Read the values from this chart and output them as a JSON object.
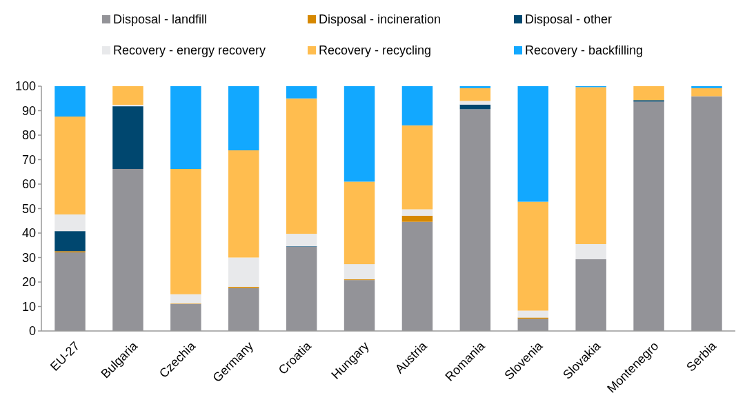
{
  "chart_data": {
    "type": "bar",
    "stacked": true,
    "legend": "top",
    "grid": false,
    "categories": [
      "EU-27",
      "Bulgaria",
      "Czechia",
      "Germany",
      "Croatia",
      "Hungary",
      "Austria",
      "Romania",
      "Slovenia",
      "Slovakia",
      "Montenegro",
      "Serbia"
    ],
    "ylim": [
      0,
      100
    ],
    "yticks": [
      0,
      10,
      20,
      30,
      40,
      50,
      60,
      70,
      80,
      90,
      100
    ],
    "series": [
      {
        "name": "Disposal - landfill",
        "color": "#939398",
        "values": [
          32.1,
          66.2,
          11,
          17.5,
          34.4,
          20.8,
          44.6,
          90.6,
          5,
          29.3,
          93.7,
          95.9
        ]
      },
      {
        "name": "Disposal - incineration",
        "color": "#d68800",
        "values": [
          0.5,
          0,
          0.2,
          0.5,
          0,
          0.3,
          2.5,
          0,
          0.5,
          0,
          0,
          0
        ]
      },
      {
        "name": "Disposal - other",
        "color": "#00476f",
        "values": [
          8.2,
          25.6,
          0,
          0,
          0.2,
          0,
          0,
          1.9,
          0,
          0,
          0.6,
          0
        ]
      },
      {
        "name": "Recovery - energy recovery",
        "color": "#e8e9eb",
        "values": [
          6.8,
          0.6,
          3.8,
          12,
          5.1,
          6.2,
          2.6,
          1.5,
          2.8,
          6.2,
          0,
          0
        ]
      },
      {
        "name": "Recovery - recycling",
        "color": "#ffbd4f",
        "values": [
          40,
          7.6,
          51.2,
          43.8,
          55.3,
          33.7,
          34.3,
          5.2,
          44.5,
          64.1,
          5.7,
          3.3
        ]
      },
      {
        "name": "Recovery - backfilling",
        "color": "#12a8ff",
        "values": [
          12.4,
          0,
          33.8,
          26.2,
          5,
          39,
          16,
          0.8,
          47.2,
          0.4,
          0,
          0.8
        ]
      }
    ]
  }
}
